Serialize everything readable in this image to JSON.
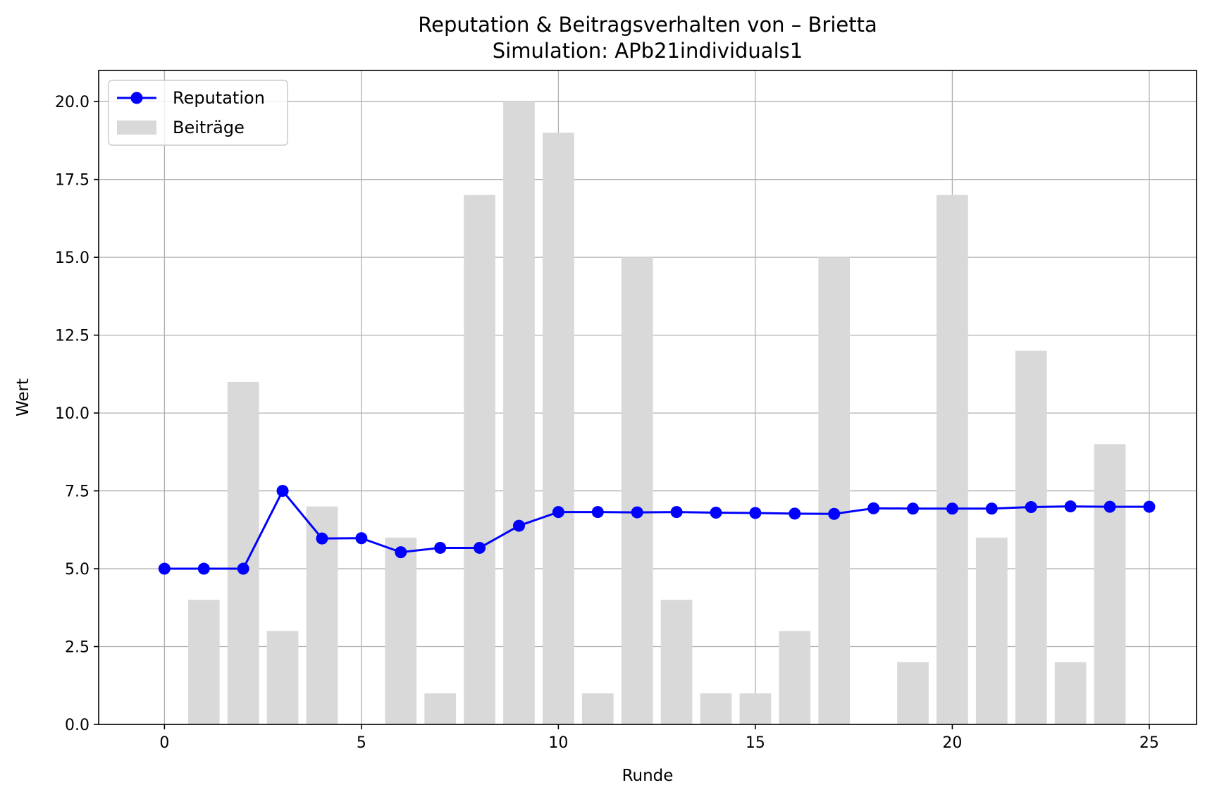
{
  "chart_data": {
    "type": "bar",
    "title": "Reputation & Beitragsverhalten von – Brietta",
    "subtitle": "Simulation: APb21individuals1",
    "xlabel": "Runde",
    "ylabel": "Wert",
    "xlim": [
      -1.67,
      26.2
    ],
    "ylim": [
      0,
      21
    ],
    "xticks": [
      0,
      5,
      10,
      15,
      20,
      25
    ],
    "yticks": [
      0,
      2.5,
      5,
      7.5,
      10,
      12.5,
      15,
      17.5,
      20
    ],
    "xtick_labels": [
      "0",
      "5",
      "10",
      "15",
      "20",
      "25"
    ],
    "ytick_labels": [
      "0.0",
      "2.5",
      "5.0",
      "7.5",
      "10.0",
      "12.5",
      "15.0",
      "17.5",
      "20.0"
    ],
    "grid": true,
    "legend_position": "top-left",
    "series": [
      {
        "name": "Reputation",
        "type": "line",
        "color": "#0000ff",
        "marker": "circle",
        "x": [
          0,
          1,
          2,
          3,
          4,
          5,
          6,
          7,
          8,
          9,
          10,
          11,
          12,
          13,
          14,
          15,
          16,
          17,
          18,
          19,
          20,
          21,
          22,
          23,
          24,
          25
        ],
        "values": [
          5.0,
          5.0,
          5.0,
          7.5,
          5.97,
          5.98,
          5.53,
          5.67,
          5.67,
          6.38,
          6.82,
          6.82,
          6.81,
          6.82,
          6.8,
          6.79,
          6.77,
          6.76,
          6.94,
          6.93,
          6.93,
          6.93,
          6.98,
          7.0,
          6.99,
          6.99
        ]
      },
      {
        "name": "Beiträge",
        "type": "bar",
        "color": "#d9d9d9",
        "x": [
          1,
          2,
          3,
          4,
          6,
          7,
          8,
          9,
          10,
          11,
          12,
          13,
          14,
          15,
          16,
          17,
          19,
          20,
          21,
          22,
          23,
          24
        ],
        "values": [
          4,
          11,
          3,
          7,
          6,
          1,
          17,
          20,
          19,
          1,
          15,
          4,
          1,
          1,
          3,
          15,
          2,
          17,
          6,
          12,
          2,
          9
        ]
      }
    ]
  }
}
